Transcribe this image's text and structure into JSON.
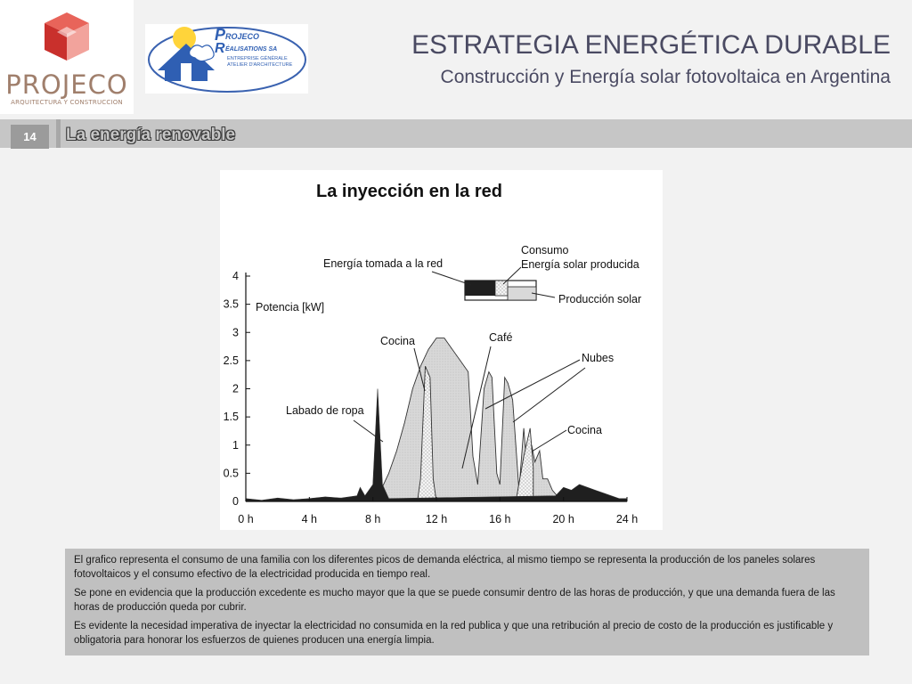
{
  "brand": {
    "name": "PROJECO",
    "tagline": "ARQUITECTURA Y CONSTRUCCION"
  },
  "partner_logo": {
    "lines": [
      "ROJECO",
      "ÉALISATIONS SA",
      "ENTREPRISE GÉNÉRALE",
      "ATELIER D'ARCHITECTURE"
    ]
  },
  "header": {
    "title": "ESTRATEGIA ENERGÉTICA DURABLE",
    "subtitle": "Construcción y Energía solar fotovoltaica en Argentina"
  },
  "section": {
    "page_number": "14",
    "title": "La energía renovable"
  },
  "chart_data": {
    "type": "area",
    "title": "La inyección en la red",
    "ylabel": "Potencia [kW]",
    "xlabel": "",
    "xlim": [
      0,
      24
    ],
    "ylim": [
      0,
      4
    ],
    "xticks": [
      0,
      4,
      8,
      12,
      16,
      20,
      24
    ],
    "xtick_labels": [
      "0 h",
      "4 h",
      "8 h",
      "12 h",
      "16 h",
      "20 h",
      "24 h"
    ],
    "yticks": [
      0,
      0.5,
      1,
      1.5,
      2,
      2.5,
      3,
      3.5,
      4
    ],
    "ytick_labels": [
      "0",
      "0.5",
      "1",
      "1.5",
      "2",
      "2.5",
      "3",
      "3.5",
      "4"
    ],
    "legend": {
      "placement": "top-right",
      "entries": [
        "Energía tomada a la red",
        "Consumo",
        "Energía solar producida",
        "Producción solar"
      ]
    },
    "series": [
      {
        "name": "Producción solar",
        "color": "#d9d9d9",
        "x": [
          7.5,
          8.5,
          9.0,
          9.5,
          10.0,
          10.5,
          11.0,
          11.5,
          12.0,
          12.5,
          13.0,
          13.5,
          14.0,
          14.3,
          14.6,
          15.0,
          15.3,
          15.5,
          15.8,
          16.0,
          16.3,
          16.5,
          16.8,
          17.0,
          17.2,
          17.5,
          17.7,
          18.0,
          18.2,
          18.5,
          18.7,
          19.0,
          19.3,
          19.6,
          20.0
        ],
        "y": [
          0.0,
          0.2,
          0.5,
          0.9,
          1.4,
          2.0,
          2.4,
          2.7,
          2.9,
          2.9,
          2.7,
          2.5,
          2.3,
          0.8,
          0.3,
          2.0,
          2.3,
          2.2,
          0.5,
          0.3,
          2.2,
          2.1,
          1.8,
          1.0,
          0.2,
          1.3,
          0.6,
          1.0,
          0.7,
          0.9,
          0.4,
          0.4,
          0.2,
          0.1,
          0.0
        ]
      },
      {
        "name": "Energía solar producida",
        "color": "#ececec",
        "x": [
          10.8,
          11.0,
          11.3,
          11.6,
          11.8,
          12.0,
          17.0,
          17.5,
          17.9,
          18.1
        ],
        "y": [
          0.0,
          0.4,
          2.4,
          2.2,
          0.4,
          0.0,
          0.0,
          0.8,
          1.3,
          0.6
        ]
      },
      {
        "name": "Energía tomada a la red",
        "color": "#1f1f1f",
        "x": [
          0.0,
          1.0,
          2.0,
          3.0,
          4.0,
          5.0,
          6.0,
          7.0,
          7.2,
          7.5,
          8.0,
          8.3,
          8.6,
          9.0,
          19.5,
          20.0,
          20.5,
          21.0,
          21.5,
          22.0,
          22.5,
          23.0,
          23.5,
          24.0
        ],
        "y": [
          0.05,
          0.02,
          0.06,
          0.03,
          0.05,
          0.08,
          0.06,
          0.1,
          0.25,
          0.1,
          0.3,
          2.0,
          0.3,
          0.05,
          0.1,
          0.25,
          0.2,
          0.3,
          0.25,
          0.2,
          0.15,
          0.1,
          0.05,
          0.05
        ]
      }
    ],
    "annotations": [
      "Labado de ropa",
      "Cocina",
      "Café",
      "Nubes",
      "Cocina"
    ]
  },
  "description": {
    "paragraphs": [
      "El grafico representa el consumo de una familia con los diferentes picos de demanda eléctrica, al mismo tiempo se representa la producción de los paneles solares fotovoltaicos y el consumo  efectivo de la electricidad producida en tiempo real.",
      "Se pone en evidencia que la producción excedente  es mucho mayor que la que se puede consumir dentro de las horas de producción, y que una demanda fuera de las horas de producción queda por cubrir.",
      "Es evidente la necesidad imperativa de inyectar la electricidad no consumida en la red publica y que una retribución al precio de costo de la producción es justificable y obligatoria para honorar los esfuerzos de quienes producen una energía limpia."
    ]
  }
}
